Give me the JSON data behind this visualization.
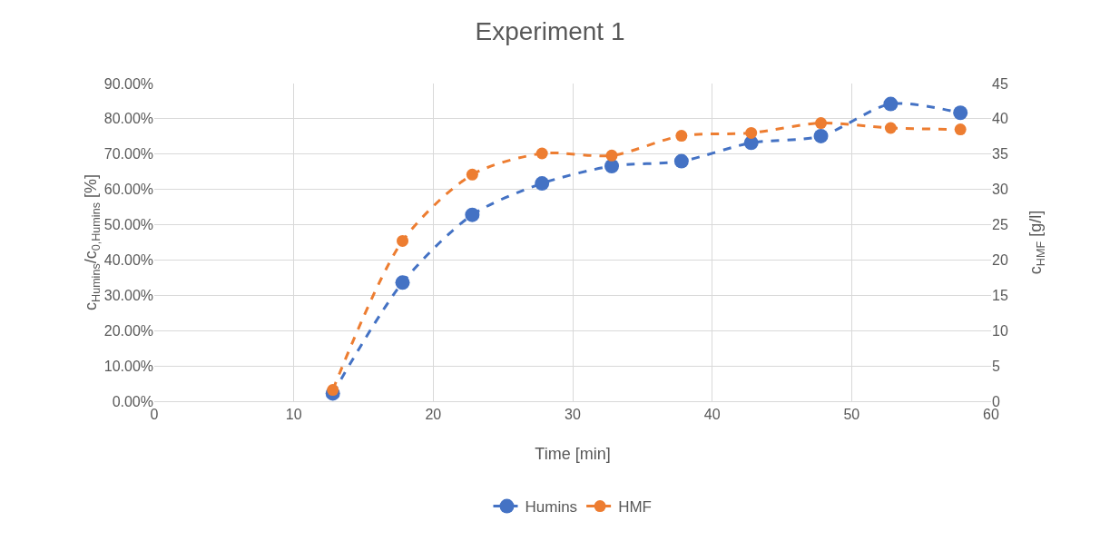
{
  "chart_data": {
    "type": "line",
    "title": "Experiment 1",
    "xlabel": "Time [min]",
    "ylabel": "c$_{Humins}$/c$_{0,Humins}$ [%]",
    "y2label": "c$_{HMF}$ [g/l]",
    "x": [
      12.8,
      17.8,
      22.8,
      27.8,
      32.8,
      37.8,
      42.8,
      47.8,
      52.8,
      57.8
    ],
    "series": [
      {
        "name": "Humins",
        "color": "#4472c4",
        "values": [
          2.2,
          33.6,
          52.8,
          61.7,
          66.6,
          68.0,
          73.2,
          75.1,
          84.2,
          81.7
        ]
      },
      {
        "name": "HMF",
        "color": "#ed7d31",
        "axis": "y2",
        "values": [
          1.6,
          22.7,
          32.1,
          35.1,
          34.8,
          37.6,
          38.0,
          39.4,
          38.7,
          38.5
        ]
      }
    ],
    "xlim": [
      0,
      60
    ],
    "xticks": [
      0,
      10,
      20,
      30,
      40,
      50,
      60
    ],
    "ylim": [
      0,
      90
    ],
    "yticks": [
      {
        "value": 0,
        "label": "0.00%"
      },
      {
        "value": 10,
        "label": "10.00%"
      },
      {
        "value": 20,
        "label": "20.00%"
      },
      {
        "value": 30,
        "label": "30.00%"
      },
      {
        "value": 40,
        "label": "40.00%"
      },
      {
        "value": 50,
        "label": "50.00%"
      },
      {
        "value": 60,
        "label": "60.00%"
      },
      {
        "value": 70,
        "label": "70.00%"
      },
      {
        "value": 80,
        "label": "80.00%"
      },
      {
        "value": 90,
        "label": "90.00%"
      }
    ],
    "y2lim": [
      0,
      45
    ],
    "y2ticks": [
      0,
      5,
      10,
      15,
      20,
      25,
      30,
      35,
      40,
      45
    ],
    "grid": true,
    "legend": "bottom",
    "marker": "circle",
    "line_style": "dashed"
  }
}
